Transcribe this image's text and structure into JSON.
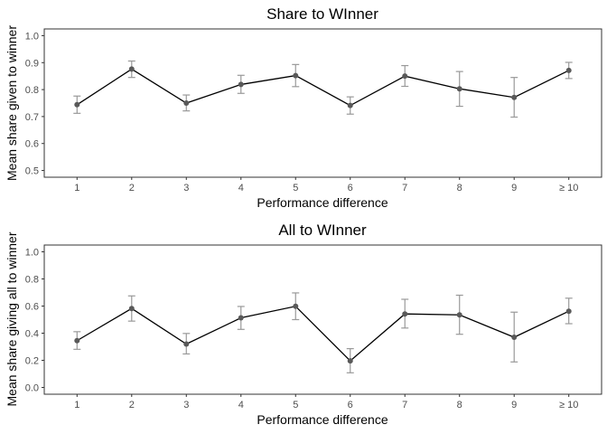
{
  "chart_data": [
    {
      "type": "line",
      "title": "Share to WInner",
      "xlabel": "Performance difference",
      "ylabel": "Mean share given to winner",
      "categories": [
        "1",
        "2",
        "3",
        "4",
        "5",
        "6",
        "7",
        "8",
        "9",
        "≥ 10"
      ],
      "yticks": [
        "0.5",
        "0.6",
        "0.7",
        "0.8",
        "0.9",
        "1.0"
      ],
      "ylim": [
        0.475,
        1.025
      ],
      "grid": false,
      "series": [
        {
          "values": [
            0.744,
            0.876,
            0.75,
            0.819,
            0.852,
            0.741,
            0.85,
            0.803,
            0.771,
            0.871
          ],
          "err_low": [
            0.712,
            0.845,
            0.721,
            0.786,
            0.811,
            0.709,
            0.812,
            0.738,
            0.698,
            0.841
          ],
          "err_high": [
            0.776,
            0.906,
            0.78,
            0.853,
            0.893,
            0.773,
            0.889,
            0.867,
            0.845,
            0.901
          ]
        }
      ]
    },
    {
      "type": "line",
      "title": "All to WInner",
      "xlabel": "Performance difference",
      "ylabel": "Mean share giving all to winner",
      "categories": [
        "1",
        "2",
        "3",
        "4",
        "5",
        "6",
        "7",
        "8",
        "9",
        "≥ 10"
      ],
      "yticks": [
        "0.0",
        "0.2",
        "0.4",
        "0.6",
        "0.8",
        "1.0"
      ],
      "ylim": [
        -0.05,
        1.05
      ],
      "grid": false,
      "series": [
        {
          "values": [
            0.345,
            0.582,
            0.32,
            0.513,
            0.598,
            0.196,
            0.542,
            0.535,
            0.37,
            0.562
          ],
          "err_low": [
            0.281,
            0.489,
            0.247,
            0.428,
            0.5,
            0.108,
            0.438,
            0.392,
            0.188,
            0.47
          ],
          "err_high": [
            0.411,
            0.675,
            0.398,
            0.597,
            0.697,
            0.286,
            0.65,
            0.68,
            0.555,
            0.658
          ]
        }
      ]
    }
  ]
}
